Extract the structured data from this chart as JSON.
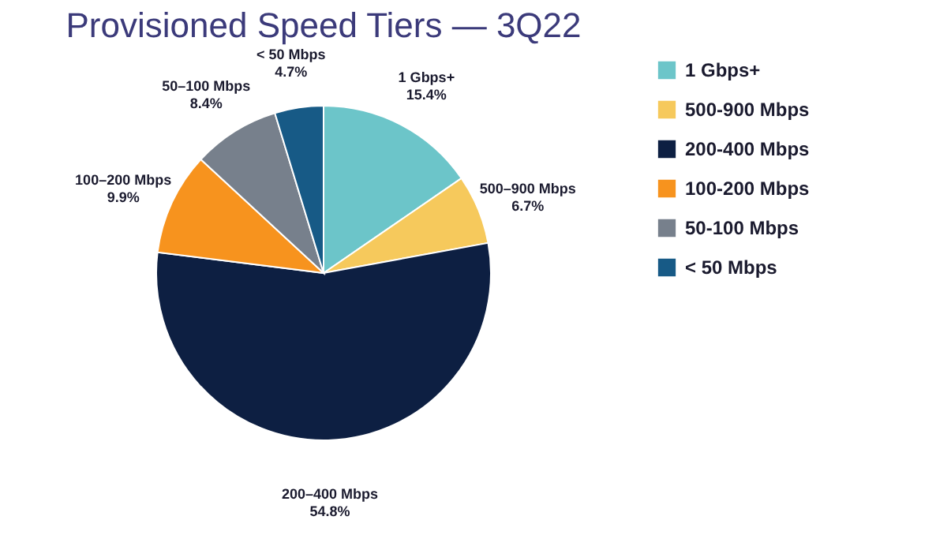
{
  "chart_data": {
    "type": "pie",
    "title": "Provisioned Speed Tiers — 3Q22",
    "categories": [
      "1 Gbps+",
      "500-900 Mbps",
      "200-400 Mbps",
      "100-200 Mbps",
      "50-100 Mbps",
      "< 50 Mbps"
    ],
    "values": [
      15.4,
      6.7,
      54.8,
      9.9,
      8.4,
      4.7
    ],
    "value_labels": [
      "1 Gbps+\n15.4%",
      "500–900 Mbps\n6.7%",
      "200–400 Mbps\n54.8%",
      "100–200 Mbps\n9.9%",
      "50–100 Mbps\n8.4%",
      "< 50 Mbps\n4.7%"
    ],
    "colors": [
      "#6cc5c9",
      "#f6c95c",
      "#0d1f42",
      "#f7931e",
      "#77808c",
      "#175a86"
    ],
    "legend": "right"
  }
}
